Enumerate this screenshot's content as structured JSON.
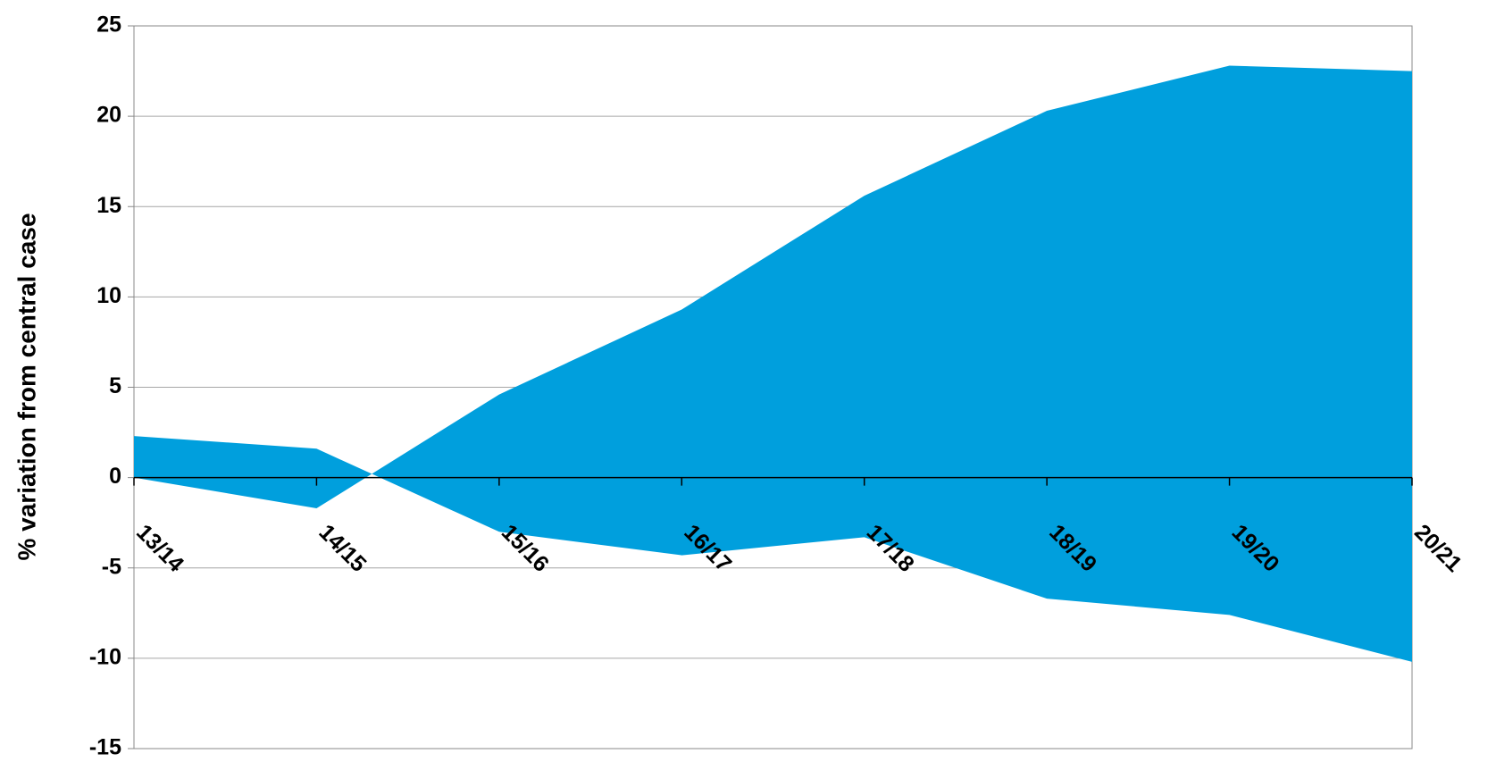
{
  "chart_data": {
    "type": "band",
    "y_label": "% variation from central case",
    "categories": [
      "13/14",
      "14/15",
      "15/16",
      "16/17",
      "17/18",
      "18/19",
      "19/20",
      "20/21"
    ],
    "series": [
      {
        "color": "#009fdd",
        "values": [
          2.3,
          1.6,
          -3.0,
          -4.3,
          -3.3,
          -6.7,
          -7.6,
          -10.2
        ]
      },
      {
        "color": "#009fdd",
        "values": [
          0,
          -1.7,
          4.6,
          9.3,
          15.6,
          20.3,
          22.8,
          22.5
        ]
      }
    ],
    "ylim": [
      -15,
      25
    ],
    "yticks": [
      -15,
      -10,
      -5,
      0,
      5,
      10,
      15,
      20,
      25
    ],
    "grid": true
  }
}
